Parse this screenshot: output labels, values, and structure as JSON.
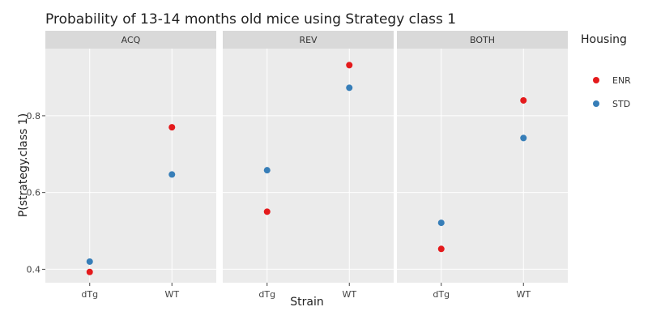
{
  "chart_data": {
    "type": "scatter",
    "title": "Probability of 13-14 months old mice using Strategy class 1",
    "xlabel": "Strain",
    "ylabel": "P(strategy.class 1)",
    "categories": [
      "dTg",
      "WT"
    ],
    "facets": [
      "ACQ",
      "REV",
      "BOTH"
    ],
    "ylim": [
      0.365,
      0.975
    ],
    "yticks": [
      0.4,
      0.6,
      0.8
    ],
    "ytick_labels": [
      "0.4",
      "0.6",
      "0.8"
    ],
    "grid": true,
    "legend": {
      "title": "Housing",
      "position": "right",
      "entries": [
        {
          "name": "ENR",
          "color": "#e41a1c"
        },
        {
          "name": "STD",
          "color": "#377eb8"
        }
      ]
    },
    "series": [
      {
        "name": "ENR",
        "color": "#e41a1c",
        "values": {
          "ACQ": [
            0.393,
            0.77
          ],
          "REV": [
            0.55,
            0.932
          ],
          "BOTH": [
            0.453,
            0.84
          ]
        }
      },
      {
        "name": "STD",
        "color": "#377eb8",
        "values": {
          "ACQ": [
            0.42,
            0.647
          ],
          "REV": [
            0.658,
            0.873
          ],
          "BOTH": [
            0.521,
            0.742
          ]
        }
      }
    ]
  },
  "colors": {
    "panel_bg": "#ebebeb",
    "strip_bg": "#d9d9d9",
    "grid_major": "#ffffff"
  }
}
